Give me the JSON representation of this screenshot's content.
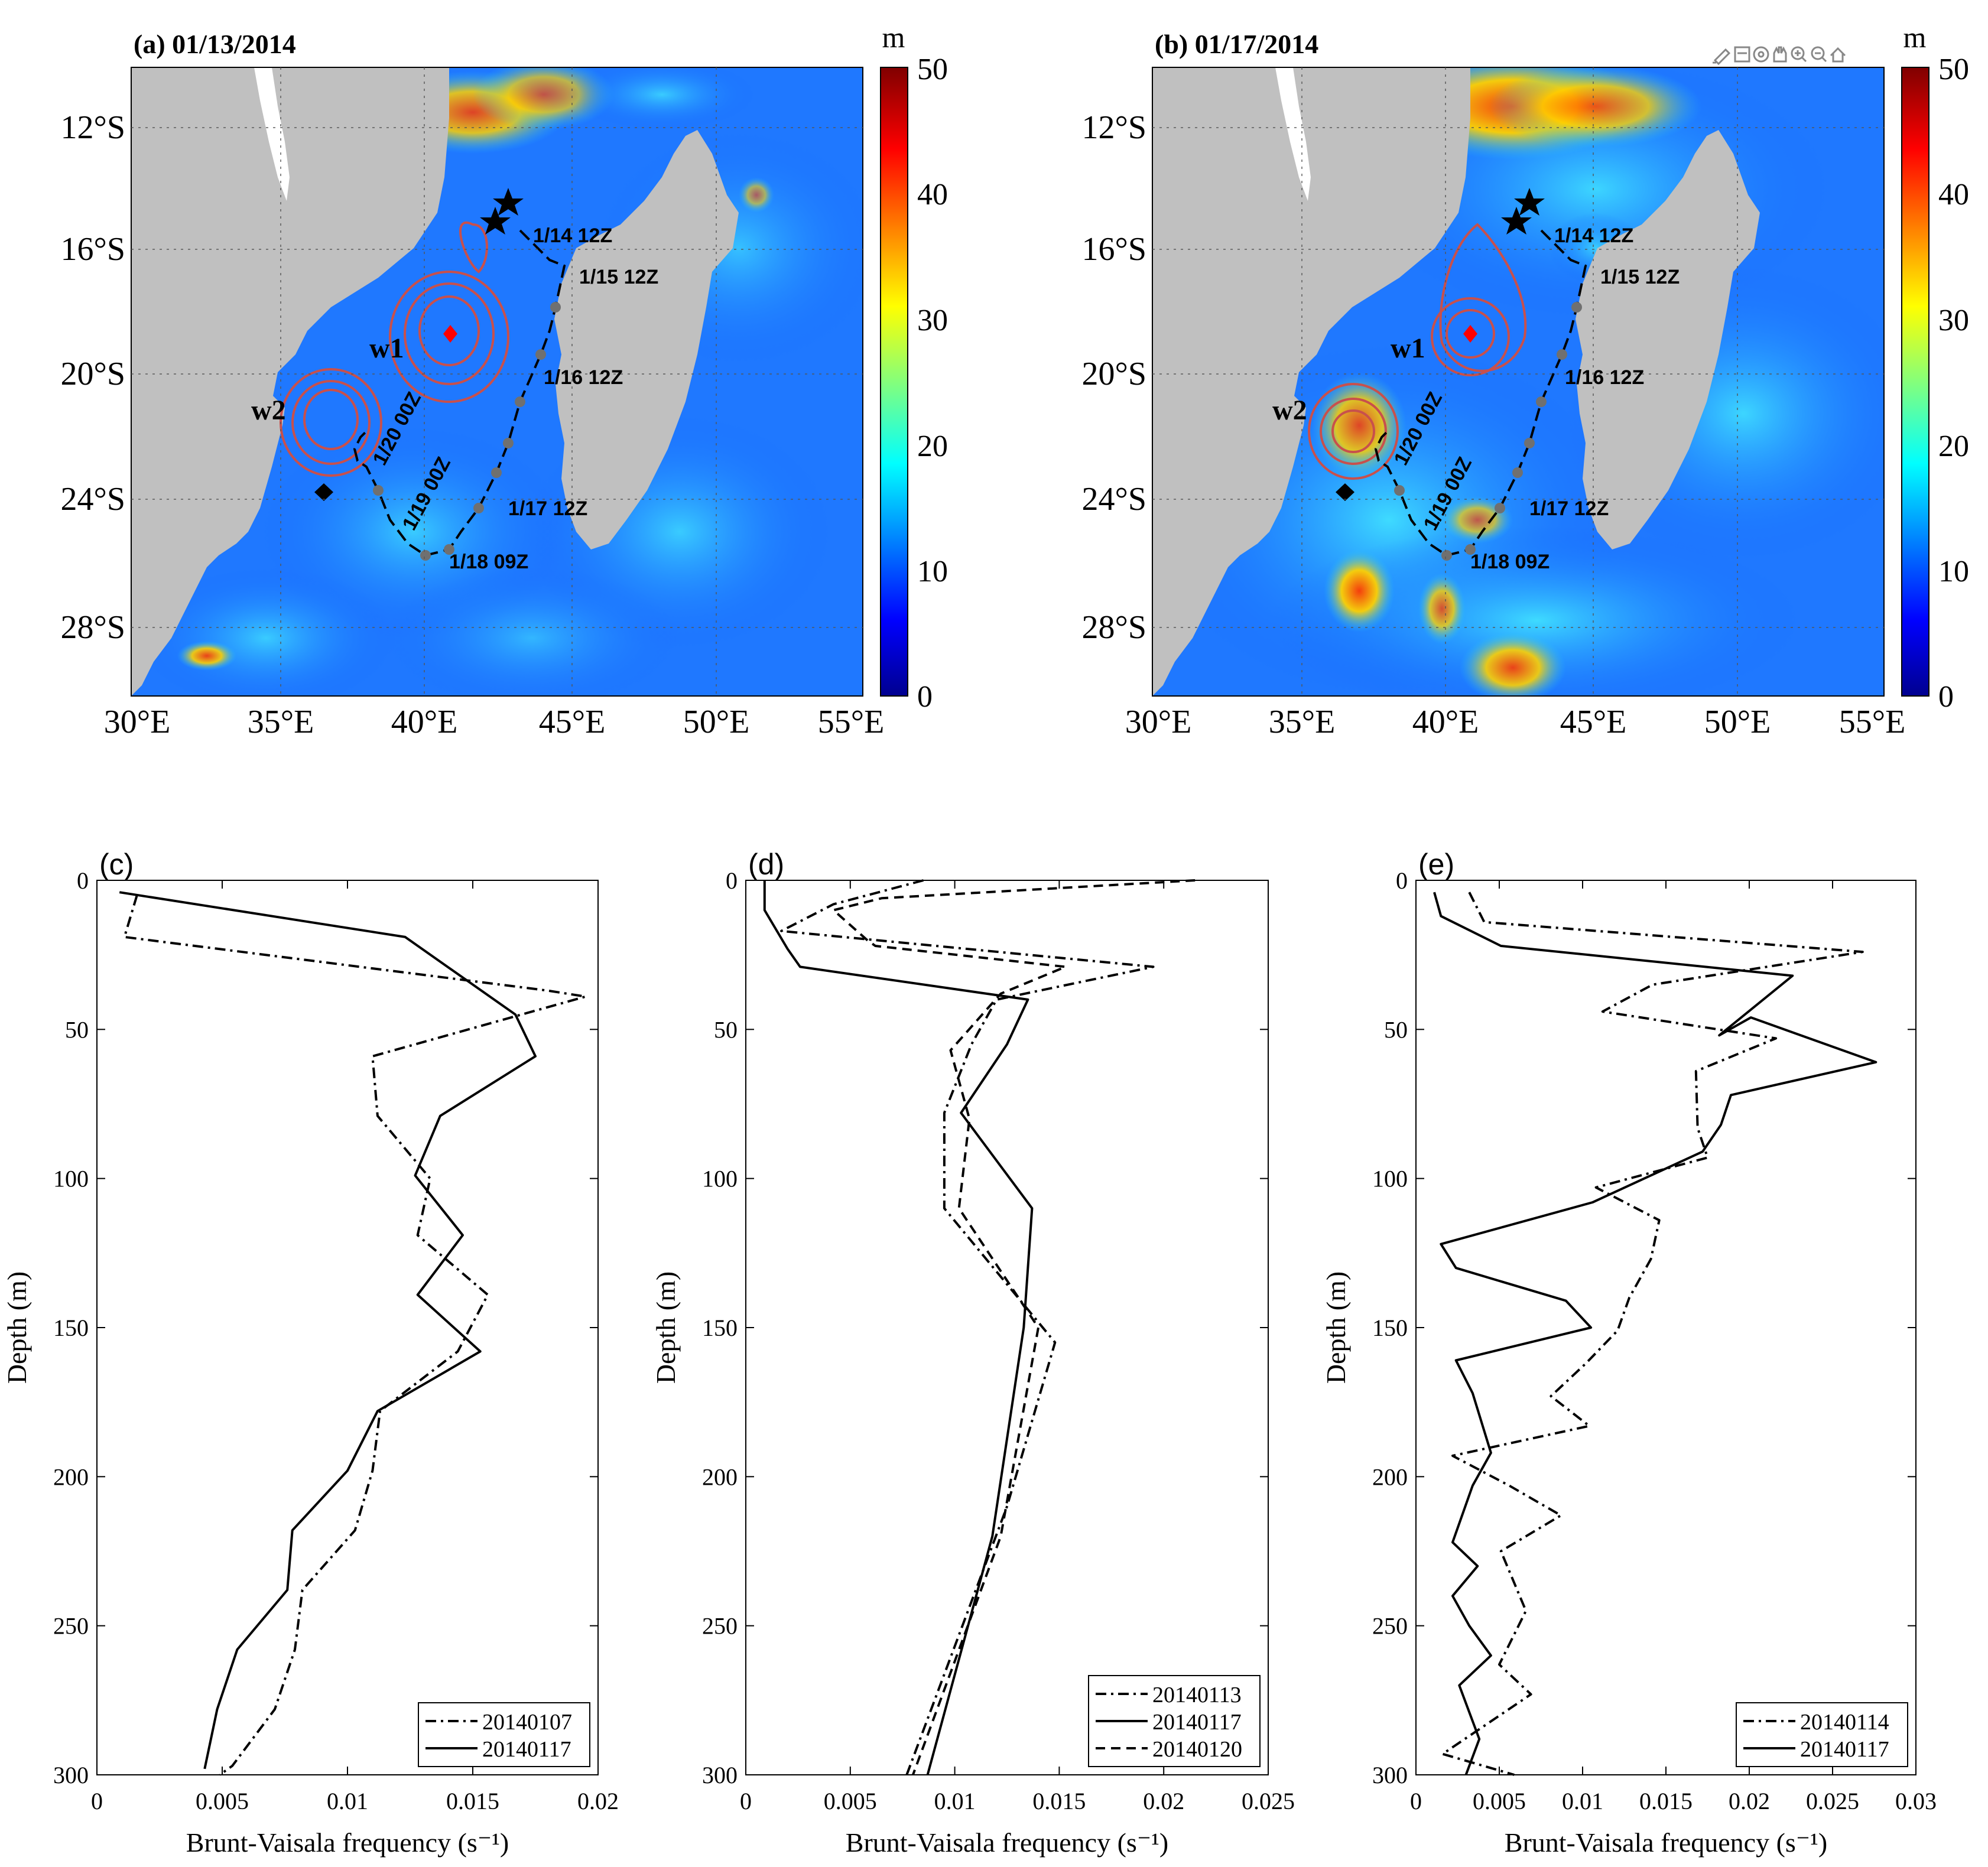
{
  "maps": [
    {
      "panel_label": "(a) 01/13/2014",
      "colorbar": {
        "unit": "m",
        "ticks": [
          "50",
          "40",
          "30",
          "20",
          "10",
          "0"
        ]
      },
      "lat_ticks": [
        "12°S",
        "16°S",
        "20°S",
        "24°S",
        "28°S"
      ],
      "lon_ticks": [
        "30°E",
        "35°E",
        "40°E",
        "45°E",
        "50°E",
        "55°E"
      ],
      "eddy_labels": [
        "w1",
        "w2"
      ],
      "track_labels": [
        "1/14 12Z",
        "1/15 12Z",
        "1/16 12Z",
        "1/17 12Z",
        "1/18 09Z",
        "1/19 00Z",
        "1/20 00Z"
      ]
    },
    {
      "panel_label": "(b) 01/17/2014",
      "colorbar": {
        "unit": "m",
        "ticks": [
          "50",
          "40",
          "30",
          "20",
          "10",
          "0"
        ]
      },
      "lat_ticks": [
        "12°S",
        "16°S",
        "20°S",
        "24°S",
        "28°S"
      ],
      "lon_ticks": [
        "30°E",
        "35°E",
        "40°E",
        "45°E",
        "50°E",
        "55°E"
      ],
      "eddy_labels": [
        "w1",
        "w2"
      ],
      "track_labels": [
        "1/14 12Z",
        "1/15 12Z",
        "1/16 12Z",
        "1/17 12Z",
        "1/18 09Z",
        "1/19 00Z",
        "1/20 00Z"
      ]
    }
  ],
  "chart_data": [
    {
      "panel": "(c)",
      "type": "line",
      "xlabel": "Brunt-Vaisala frequency (s⁻¹)",
      "ylabel": "Depth (m)",
      "xlim": [
        0,
        0.02
      ],
      "ylim": [
        0,
        300
      ],
      "y_inverted": true,
      "xticks": [
        "0",
        "0.005",
        "0.01",
        "0.015",
        "0.02"
      ],
      "yticks": [
        "0",
        "50",
        "100",
        "150",
        "200",
        "250",
        "300"
      ],
      "legend_position": "bottom-right",
      "series": [
        {
          "name": "20140107",
          "style": "dashdot",
          "points": [
            [
              0.0016,
              5
            ],
            [
              0.0011,
              19
            ],
            [
              0.018,
              37
            ],
            [
              0.0195,
              39
            ],
            [
              0.011,
              59
            ],
            [
              0.0112,
              79
            ],
            [
              0.0133,
              100
            ],
            [
              0.0128,
              119
            ],
            [
              0.0156,
              139
            ],
            [
              0.0144,
              158
            ],
            [
              0.0113,
              178
            ],
            [
              0.011,
              198
            ],
            [
              0.0103,
              218
            ],
            [
              0.0082,
              238
            ],
            [
              0.0079,
              258
            ],
            [
              0.0071,
              278
            ],
            [
              0.0054,
              297
            ],
            [
              0.0049,
              300
            ]
          ]
        },
        {
          "name": "20140117",
          "style": "solid",
          "points": [
            [
              0.0009,
              4
            ],
            [
              0.0123,
              19
            ],
            [
              0.0167,
              45
            ],
            [
              0.0175,
              59
            ],
            [
              0.0137,
              79
            ],
            [
              0.0127,
              99
            ],
            [
              0.0146,
              119
            ],
            [
              0.0128,
              139
            ],
            [
              0.0153,
              158
            ],
            [
              0.0112,
              178
            ],
            [
              0.01,
              198
            ],
            [
              0.0078,
              218
            ],
            [
              0.0076,
              238
            ],
            [
              0.0056,
              258
            ],
            [
              0.0048,
              278
            ],
            [
              0.0043,
              298
            ]
          ]
        }
      ]
    },
    {
      "panel": "(d)",
      "type": "line",
      "xlabel": "Brunt-Vaisala frequency (s⁻¹)",
      "ylabel": "Depth (m)",
      "xlim": [
        0,
        0.025
      ],
      "ylim": [
        0,
        300
      ],
      "y_inverted": true,
      "xticks": [
        "0",
        "0.005",
        "0.01",
        "0.015",
        "0.02",
        "0.025"
      ],
      "yticks": [
        "0",
        "50",
        "100",
        "150",
        "200",
        "250",
        "300"
      ],
      "legend_position": "bottom-right",
      "series": [
        {
          "name": "20140113",
          "style": "dashdot",
          "points": [
            [
              0.0085,
              0
            ],
            [
              0.0042,
              8
            ],
            [
              0.0017,
              17
            ],
            [
              0.0195,
              29
            ],
            [
              0.012,
              40
            ],
            [
              0.0108,
              55
            ],
            [
              0.0095,
              78
            ],
            [
              0.0095,
              110
            ],
            [
              0.0148,
              155
            ],
            [
              0.0125,
              210
            ],
            [
              0.0077,
              300
            ]
          ]
        },
        {
          "name": "20140117",
          "style": "solid",
          "points": [
            [
              0.0009,
              0
            ],
            [
              0.0009,
              10
            ],
            [
              0.002,
              23
            ],
            [
              0.0026,
              29
            ],
            [
              0.0135,
              40
            ],
            [
              0.0125,
              55
            ],
            [
              0.0103,
              78
            ],
            [
              0.0137,
              110
            ],
            [
              0.0133,
              150
            ],
            [
              0.0118,
              220
            ],
            [
              0.0087,
              300
            ]
          ]
        },
        {
          "name": "20140120",
          "style": "dashed",
          "points": [
            [
              0.0215,
              0
            ],
            [
              0.0065,
              6
            ],
            [
              0.0042,
              10
            ],
            [
              0.0058,
              20
            ],
            [
              0.0062,
              22
            ],
            [
              0.0153,
              29
            ],
            [
              0.0122,
              38
            ],
            [
              0.0098,
              57
            ],
            [
              0.0107,
              80
            ],
            [
              0.0102,
              110
            ],
            [
              0.014,
              150
            ],
            [
              0.0122,
              220
            ],
            [
              0.008,
              300
            ]
          ]
        }
      ]
    },
    {
      "panel": "(e)",
      "type": "line",
      "xlabel": "Brunt-Vaisala frequency (s⁻¹)",
      "ylabel": "Depth (m)",
      "xlim": [
        0,
        0.03
      ],
      "ylim": [
        0,
        300
      ],
      "y_inverted": true,
      "xticks": [
        "0",
        "0.005",
        "0.01",
        "0.015",
        "0.02",
        "0.025",
        "0.03"
      ],
      "yticks": [
        "0",
        "50",
        "100",
        "150",
        "200",
        "250",
        "300"
      ],
      "legend_position": "bottom-right",
      "series": [
        {
          "name": "20140114",
          "style": "dashdot",
          "points": [
            [
              0.0032,
              4
            ],
            [
              0.0041,
              14
            ],
            [
              0.0268,
              24
            ],
            [
              0.0142,
              35
            ],
            [
              0.0112,
              44
            ],
            [
              0.0216,
              53
            ],
            [
              0.0168,
              64
            ],
            [
              0.0169,
              83
            ],
            [
              0.0175,
              93
            ],
            [
              0.0108,
              103
            ],
            [
              0.0146,
              114
            ],
            [
              0.0141,
              127
            ],
            [
              0.0128,
              140
            ],
            [
              0.0121,
              151
            ],
            [
              0.0102,
              162
            ],
            [
              0.0081,
              173
            ],
            [
              0.0104,
              183
            ],
            [
              0.0022,
              193
            ],
            [
              0.0056,
              203
            ],
            [
              0.0087,
              213
            ],
            [
              0.0051,
              225
            ],
            [
              0.0066,
              245
            ],
            [
              0.005,
              263
            ],
            [
              0.0069,
              273
            ],
            [
              0.0016,
              293
            ],
            [
              0.0059,
              300
            ]
          ]
        },
        {
          "name": "20140117",
          "style": "solid",
          "points": [
            [
              0.0011,
              4
            ],
            [
              0.0015,
              12
            ],
            [
              0.0051,
              22
            ],
            [
              0.0226,
              32
            ],
            [
              0.0182,
              52
            ],
            [
              0.0201,
              46
            ],
            [
              0.0276,
              61
            ],
            [
              0.0189,
              72
            ],
            [
              0.0183,
              82
            ],
            [
              0.0172,
              91
            ],
            [
              0.0106,
              108
            ],
            [
              0.0015,
              122
            ],
            [
              0.0024,
              130
            ],
            [
              0.009,
              141
            ],
            [
              0.0105,
              150
            ],
            [
              0.0024,
              161
            ],
            [
              0.0034,
              172
            ],
            [
              0.0045,
              192
            ],
            [
              0.0034,
              203
            ],
            [
              0.0022,
              222
            ],
            [
              0.0037,
              230
            ],
            [
              0.0022,
              240
            ],
            [
              0.0032,
              250
            ],
            [
              0.0045,
              260
            ],
            [
              0.0026,
              270
            ],
            [
              0.0038,
              288
            ],
            [
              0.003,
              300
            ]
          ]
        }
      ]
    }
  ]
}
